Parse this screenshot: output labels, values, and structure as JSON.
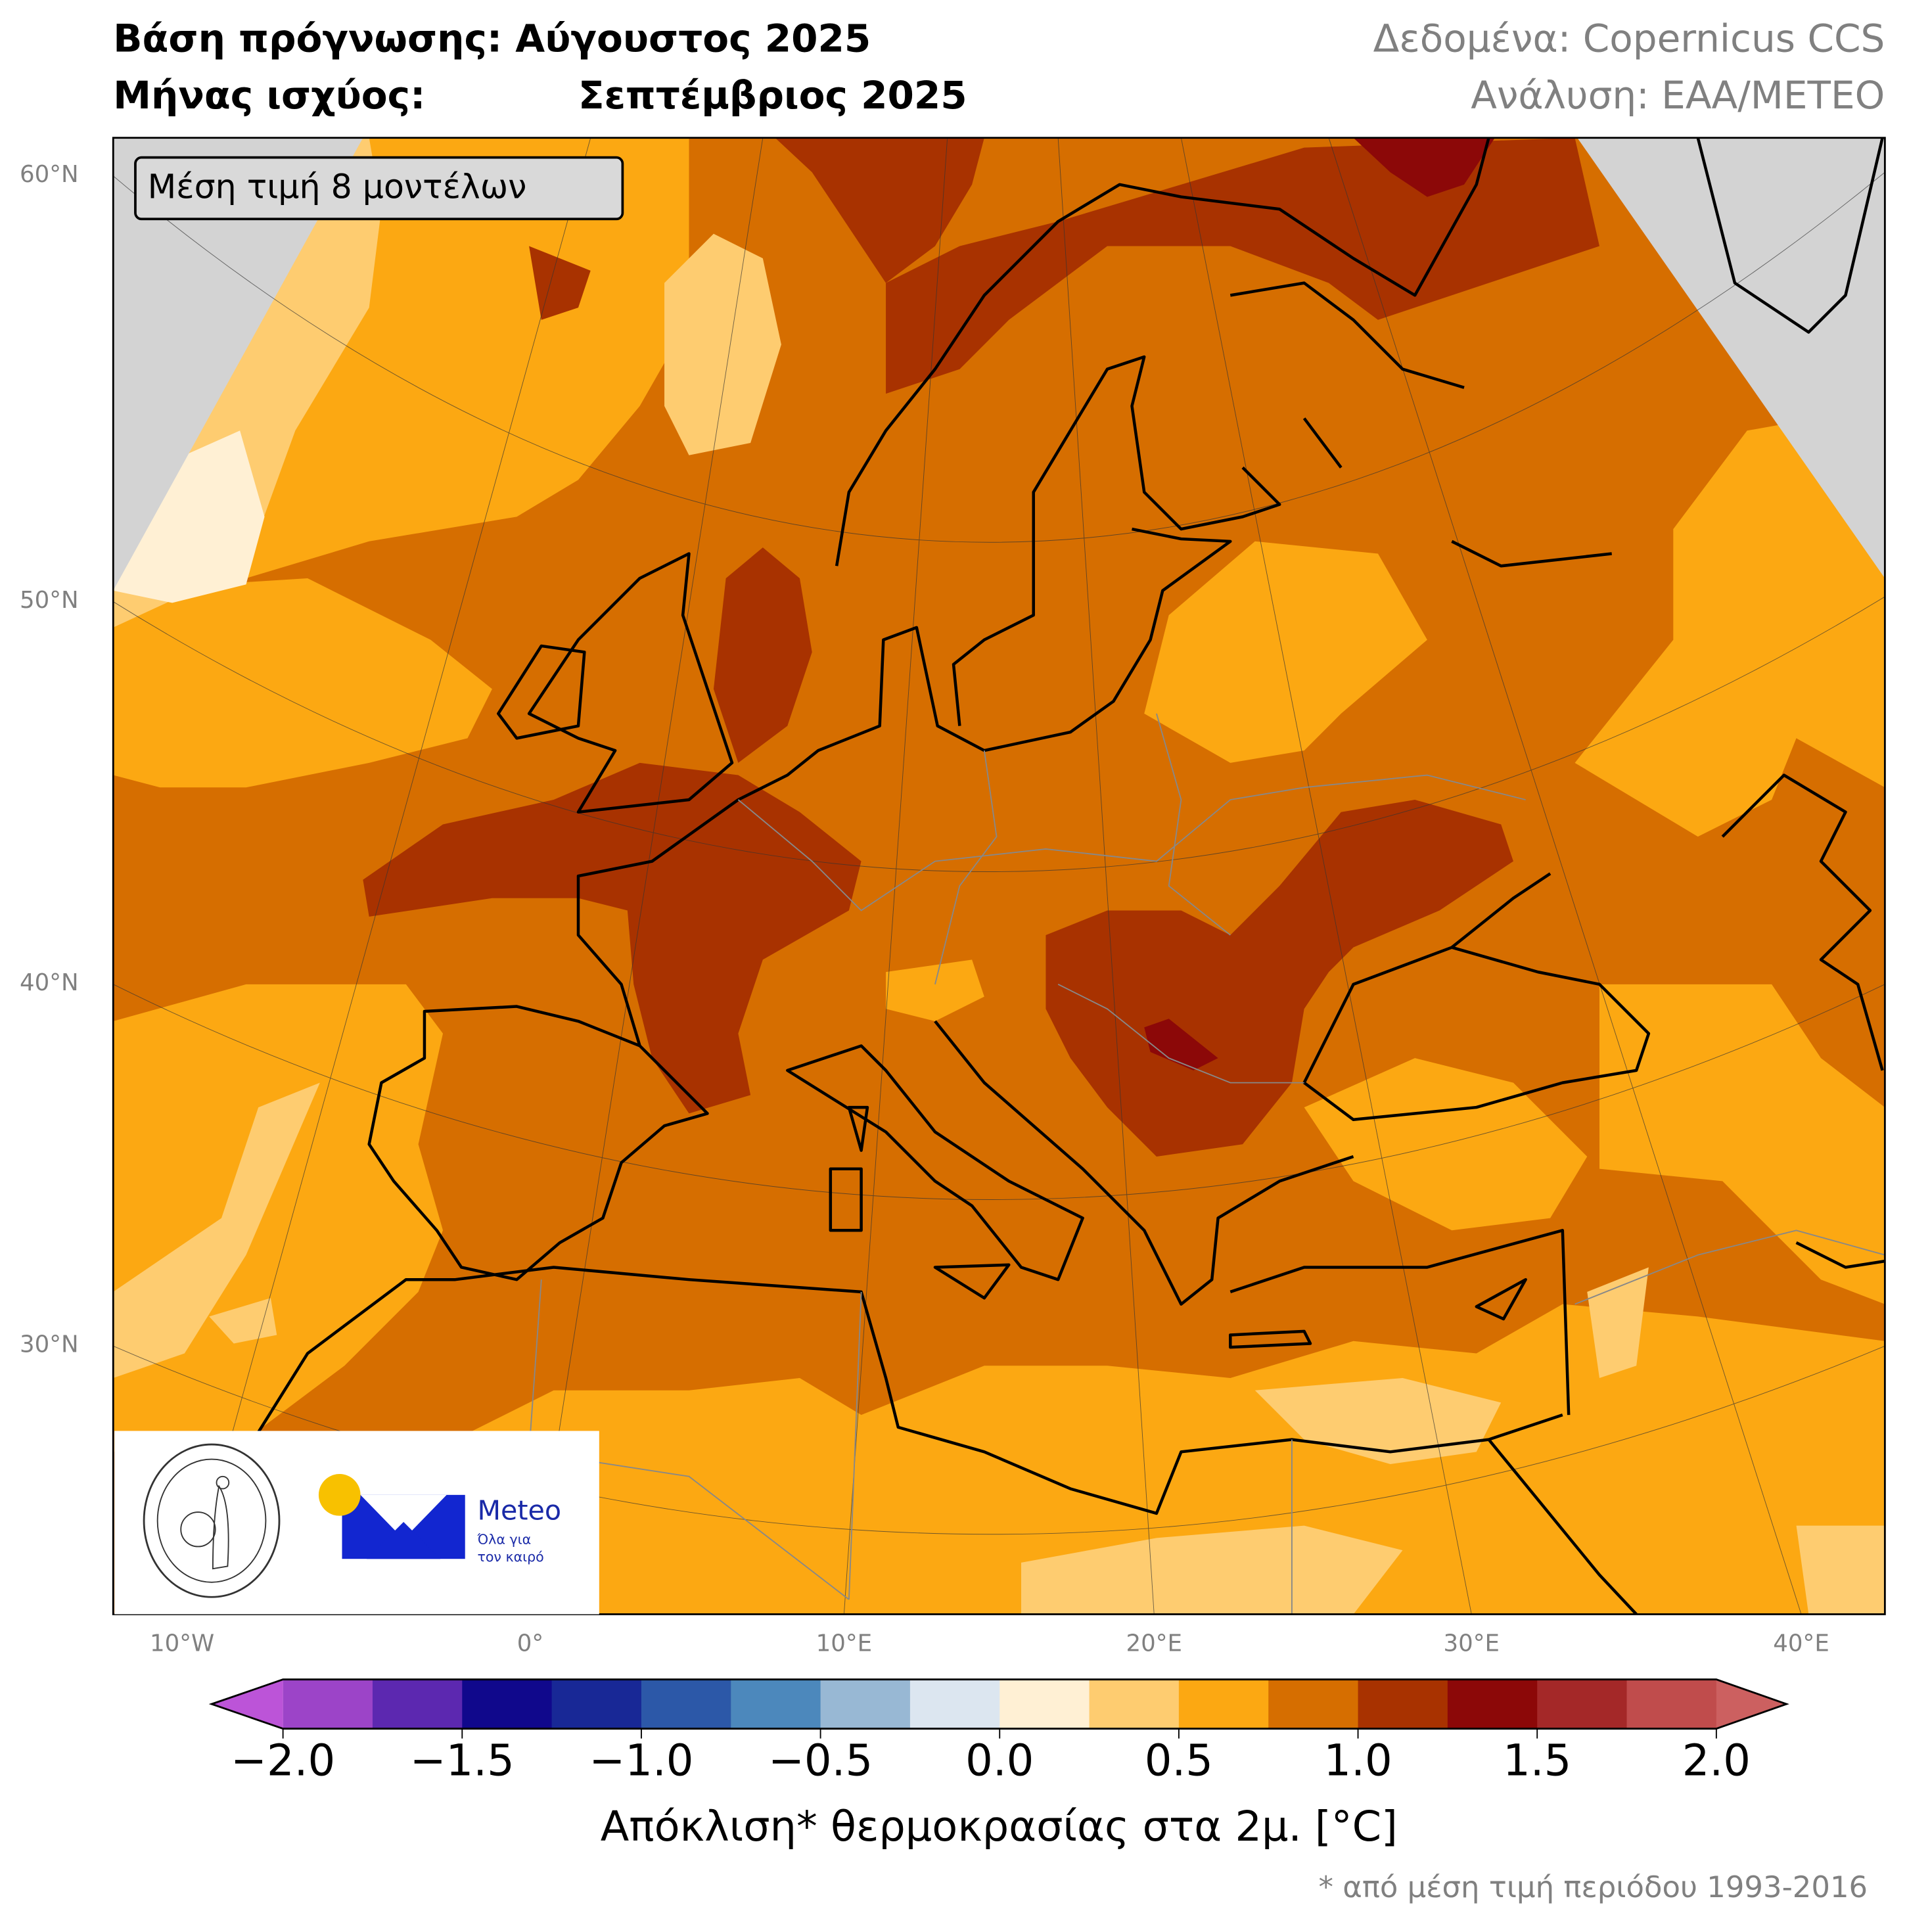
{
  "header": {
    "forecast_base": "Βάση πρόγνωσης: Αύγουστος 2025",
    "valid_month_label": "Μήνας ισχύος:",
    "valid_month_value": "Σεπτέμβριος 2025",
    "data_source": "Δεδομένα: Copernicus CCS",
    "analysis": "Ανάλυση: ΕΑΑ/METEO"
  },
  "map": {
    "model_box": "Μέση τιμή 8 μοντέλων",
    "lat_labels": [
      "60°N",
      "50°N",
      "40°N",
      "30°N"
    ],
    "lon_labels": [
      "10°W",
      "0°",
      "10°E",
      "20°E",
      "30°E",
      "40°E"
    ],
    "no_data_color": "#d3d3d3"
  },
  "logos": {
    "noa_seal_text": "ΕΘΝΙΚΟΝ ΑΣΤΕΡΟΣΚΟΠΕΙΟΝ ΑΘΗΝΩΝ · NATIONAL OBSERVATORY OF ATHENS",
    "meteo_name": "Meteo",
    "meteo_tagline_1": "Όλα για",
    "meteo_tagline_2": "τον καιρό",
    "meteo_blue": "#1226d0",
    "meteo_yellow": "#f8c100"
  },
  "colorbar": {
    "ticks": [
      "−2.0",
      "−1.5",
      "−1.0",
      "−0.5",
      "0.0",
      "0.5",
      "1.0",
      "1.5",
      "2.0"
    ],
    "range": [
      -2.0,
      2.0
    ],
    "step": 0.25,
    "extend": "both",
    "colors": [
      "#9c44c8",
      "#5c28b0",
      "#10088c",
      "#182896",
      "#2c58a8",
      "#4c88bc",
      "#98b8d4",
      "#dce6f0",
      "#fff0d4",
      "#fecc70",
      "#fca812",
      "#d66e00",
      "#a83200",
      "#8c0808",
      "#a42828",
      "#c04c4c"
    ],
    "under_color": "#bc54d8",
    "over_color": "#cc6060",
    "label": "Απόκλιση* θερμοκρασίας στα 2μ. [°C]"
  },
  "footnote": "* από μέση τιμή περιόδου 1993-2016"
}
